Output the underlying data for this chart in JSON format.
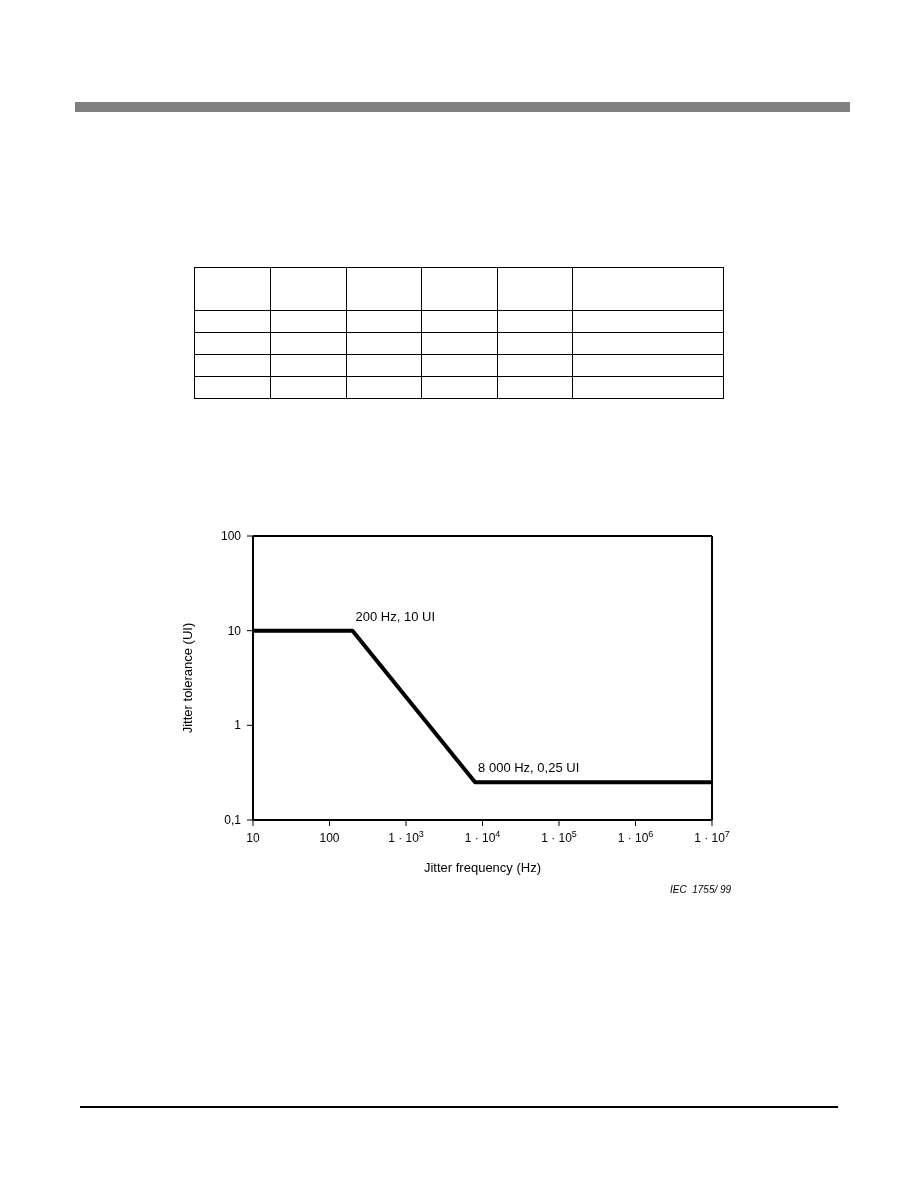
{
  "chart_data": {
    "type": "line",
    "xlabel": "Jitter frequency (Hz)",
    "ylabel": "Jitter tolerance (UI)",
    "x": [
      10,
      200,
      8000,
      10000000
    ],
    "series": [
      {
        "color": "#000000",
        "values": [
          10,
          10,
          0.25,
          0.25
        ]
      }
    ],
    "log": "xy",
    "xlim": [
      10,
      10000000
    ],
    "ylim": [
      0.1,
      100
    ],
    "xticks": [
      10,
      100,
      {
        "value": 1000,
        "label": "1 · 10$^{3}$"
      },
      {
        "value": 10000,
        "label": "1 · 10$^{4}$"
      },
      {
        "value": 100000,
        "label": "1 · 10$^{5}$"
      },
      {
        "value": 1000000,
        "label": "1 · 10$^{6}$"
      },
      {
        "value": 10000000,
        "label": "1 · 10$^{7}$"
      }
    ],
    "yticks": [
      {
        "value": 0.1,
        "label": "0,1"
      },
      1,
      10,
      100
    ],
    "grid": false,
    "legend": false,
    "marker": "none",
    "line_style": "solid",
    "annotations": [
      {
        "text": "200 Hz, 10 UI",
        "x": 200,
        "y": 10
      },
      {
        "text": "8 000 Hz, 0,25 UI",
        "x": 8000,
        "y": 0.25
      },
      "IEC  1755/ 99"
    ]
  }
}
